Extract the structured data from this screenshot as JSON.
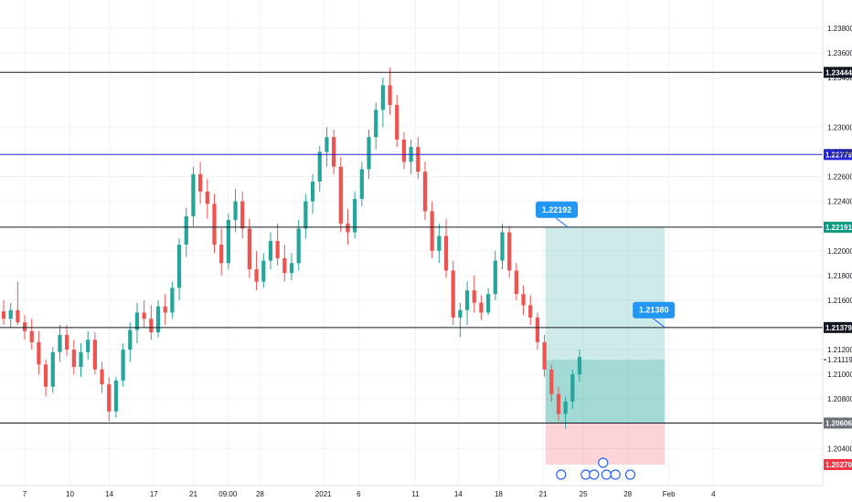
{
  "chart_data": {
    "type": "candlestick",
    "y_range": [
      1.201,
      1.24
    ],
    "y_ticks": [
      "1.23800",
      "1.23600",
      "1.23400",
      "1.23000",
      "1.22800",
      "1.22600",
      "1.22400",
      "1.22000",
      "1.21800",
      "1.21600",
      "1.21200",
      "1.21000",
      "1.20800",
      "1.20400"
    ],
    "x_ticks": [
      {
        "label": "7",
        "pos": 0.03
      },
      {
        "label": "10",
        "pos": 0.085
      },
      {
        "label": "14",
        "pos": 0.133
      },
      {
        "label": "17",
        "pos": 0.187
      },
      {
        "label": "21",
        "pos": 0.235
      },
      {
        "label": "09:00",
        "pos": 0.277
      },
      {
        "label": "28",
        "pos": 0.316
      },
      {
        "label": "2021",
        "pos": 0.393
      },
      {
        "label": "6",
        "pos": 0.436
      },
      {
        "label": "11",
        "pos": 0.505
      },
      {
        "label": "14",
        "pos": 0.557
      },
      {
        "label": "18",
        "pos": 0.606
      },
      {
        "label": "21",
        "pos": 0.66
      },
      {
        "label": "25",
        "pos": 0.709
      },
      {
        "label": "28",
        "pos": 0.763
      },
      {
        "label": "Feb",
        "pos": 0.813
      },
      {
        "label": "4",
        "pos": 0.867
      }
    ],
    "horizontal_levels": [
      {
        "value": 1.23444,
        "label": "1.23444",
        "line_color": "#131722",
        "tag_color": "#131722"
      },
      {
        "value": 1.22779,
        "label": "1.22779",
        "line_color": "#2626d9",
        "tag_color": "#2626d9"
      },
      {
        "value": 1.22191,
        "label": "1.22191",
        "line_color": "#131722",
        "tag_color": "#089981"
      },
      {
        "value": 1.21379,
        "label": "1.21379",
        "line_color": "#131722",
        "tag_color": "#131722"
      },
      {
        "value": 1.20606,
        "label": "1.20606",
        "line_color": "#131722",
        "tag_color": "#6b6f78"
      }
    ],
    "current_price": {
      "value": 1.21119,
      "label": "1.21119"
    },
    "stop_tag": {
      "value": 1.2027,
      "label": "1.20270",
      "color": "#f23645"
    },
    "position": {
      "entry": 1.21119,
      "target": 1.22192,
      "stop": 1.2027,
      "bottom_label": 1.20606,
      "start_pos": 0.663,
      "end_pos": 0.808
    },
    "callouts": [
      {
        "label": "1.22192",
        "value": 1.22192,
        "pos": 0.69
      },
      {
        "label": "1.21380",
        "value": 1.2138,
        "pos": 0.808
      }
    ],
    "candles": [
      [
        1.2151,
        1.216,
        1.214,
        1.2145
      ],
      [
        1.2145,
        1.2158,
        1.2138,
        1.2152
      ],
      [
        1.2152,
        1.2175,
        1.214,
        1.2142
      ],
      [
        1.2142,
        1.2148,
        1.2128,
        1.2135
      ],
      [
        1.2135,
        1.2145,
        1.212,
        1.2126
      ],
      [
        1.2126,
        1.2135,
        1.21,
        1.2108
      ],
      [
        1.2108,
        1.2112,
        1.2082,
        1.209
      ],
      [
        1.209,
        1.2122,
        1.2085,
        1.2118
      ],
      [
        1.2118,
        1.214,
        1.211,
        1.2132
      ],
      [
        1.2132,
        1.214,
        1.2115,
        1.212
      ],
      [
        1.212,
        1.2128,
        1.21,
        1.2106
      ],
      [
        1.2106,
        1.2125,
        1.2098,
        1.2118
      ],
      [
        1.2118,
        1.2135,
        1.2112,
        1.2128
      ],
      [
        1.2128,
        1.2134,
        1.21,
        1.2104
      ],
      [
        1.2104,
        1.211,
        1.2085,
        1.2092
      ],
      [
        1.2092,
        1.2098,
        1.2062,
        1.207
      ],
      [
        1.207,
        1.2098,
        1.2065,
        1.2095
      ],
      [
        1.2095,
        1.2125,
        1.209,
        1.212
      ],
      [
        1.212,
        1.2142,
        1.211,
        1.2136
      ],
      [
        1.2136,
        1.2158,
        1.2125,
        1.215
      ],
      [
        1.215,
        1.216,
        1.2138,
        1.2145
      ],
      [
        1.2145,
        1.2156,
        1.2128,
        1.2134
      ],
      [
        1.2134,
        1.216,
        1.213,
        1.2155
      ],
      [
        1.2155,
        1.2165,
        1.214,
        1.215
      ],
      [
        1.215,
        1.2175,
        1.2145,
        1.217
      ],
      [
        1.217,
        1.221,
        1.216,
        1.2205
      ],
      [
        1.2205,
        1.2235,
        1.2195,
        1.2228
      ],
      [
        1.2228,
        1.2268,
        1.222,
        1.2262
      ],
      [
        1.2262,
        1.2272,
        1.2238,
        1.2248
      ],
      [
        1.2248,
        1.2258,
        1.2226,
        1.2238
      ],
      [
        1.2238,
        1.2246,
        1.2198,
        1.2205
      ],
      [
        1.2205,
        1.2218,
        1.218,
        1.219
      ],
      [
        1.219,
        1.223,
        1.2185,
        1.2225
      ],
      [
        1.2225,
        1.225,
        1.2215,
        1.224
      ],
      [
        1.224,
        1.2248,
        1.221,
        1.2218
      ],
      [
        1.2218,
        1.2226,
        1.2178,
        1.2185
      ],
      [
        1.2185,
        1.22,
        1.2168,
        1.2175
      ],
      [
        1.2175,
        1.2198,
        1.217,
        1.2192
      ],
      [
        1.2192,
        1.2215,
        1.2185,
        1.2208
      ],
      [
        1.2208,
        1.2222,
        1.2188,
        1.2194
      ],
      [
        1.2194,
        1.2205,
        1.2175,
        1.2182
      ],
      [
        1.2182,
        1.2198,
        1.2176,
        1.219
      ],
      [
        1.219,
        1.2225,
        1.2184,
        1.2218
      ],
      [
        1.2218,
        1.2246,
        1.221,
        1.224
      ],
      [
        1.224,
        1.2262,
        1.223,
        1.2256
      ],
      [
        1.2256,
        1.2285,
        1.2248,
        1.228
      ],
      [
        1.228,
        1.23,
        1.2268,
        1.2292
      ],
      [
        1.2292,
        1.2298,
        1.2262,
        1.2268
      ],
      [
        1.2268,
        1.2276,
        1.2215,
        1.2222
      ],
      [
        1.2222,
        1.2234,
        1.2205,
        1.2215
      ],
      [
        1.2215,
        1.2248,
        1.221,
        1.2242
      ],
      [
        1.2242,
        1.2272,
        1.2236,
        1.2266
      ],
      [
        1.2266,
        1.2298,
        1.2258,
        1.2292
      ],
      [
        1.2292,
        1.232,
        1.2282,
        1.2314
      ],
      [
        1.2314,
        1.234,
        1.23,
        1.2334
      ],
      [
        1.2334,
        1.2348,
        1.231,
        1.2318
      ],
      [
        1.2318,
        1.2326,
        1.2284,
        1.229
      ],
      [
        1.229,
        1.2296,
        1.2266,
        1.2272
      ],
      [
        1.2272,
        1.229,
        1.2262,
        1.2284
      ],
      [
        1.2284,
        1.2292,
        1.2258,
        1.2264
      ],
      [
        1.2264,
        1.2272,
        1.2225,
        1.2232
      ],
      [
        1.2232,
        1.224,
        1.2194,
        1.22
      ],
      [
        1.22,
        1.2222,
        1.219,
        1.2212
      ],
      [
        1.2212,
        1.2226,
        1.2178,
        1.2184
      ],
      [
        1.2184,
        1.2192,
        1.214,
        1.2146
      ],
      [
        1.2146,
        1.2158,
        1.213,
        1.2152
      ],
      [
        1.2152,
        1.2175,
        1.214,
        1.2168
      ],
      [
        1.2168,
        1.218,
        1.215,
        1.2158
      ],
      [
        1.2158,
        1.2164,
        1.2144,
        1.215
      ],
      [
        1.215,
        1.217,
        1.2148,
        1.2165
      ],
      [
        1.2165,
        1.22,
        1.216,
        1.2192
      ],
      [
        1.2192,
        1.2222,
        1.2185,
        1.2215
      ],
      [
        1.2215,
        1.222,
        1.2178,
        1.2184
      ],
      [
        1.2184,
        1.219,
        1.216,
        1.2165
      ],
      [
        1.2165,
        1.2172,
        1.2148,
        1.2156
      ],
      [
        1.2156,
        1.2164,
        1.214,
        1.2146
      ],
      [
        1.2146,
        1.215,
        1.212,
        1.2126
      ],
      [
        1.2126,
        1.2132,
        1.2098,
        1.2104
      ],
      [
        1.2104,
        1.2108,
        1.2078,
        1.2084
      ],
      [
        1.2084,
        1.209,
        1.2062,
        1.2068
      ],
      [
        1.2068,
        1.2082,
        1.2056,
        1.2078
      ],
      [
        1.2078,
        1.2104,
        1.2072,
        1.21
      ],
      [
        1.21,
        1.212,
        1.2094,
        1.2114
      ]
    ],
    "colors": {
      "up": "#26a69a",
      "down": "#ef5350",
      "grid": "#f0f3fa"
    }
  }
}
